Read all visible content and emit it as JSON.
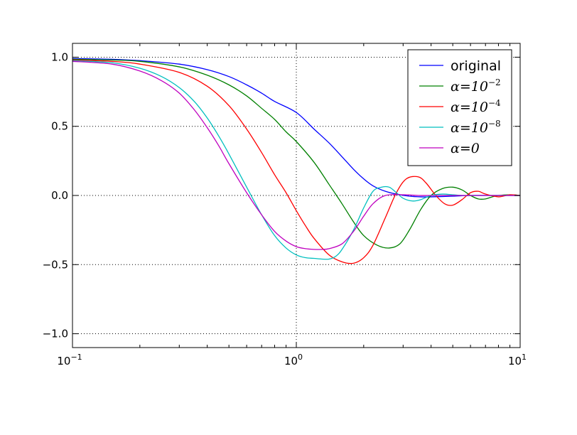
{
  "chart_data": {
    "type": "line",
    "x_scale": "log",
    "xlim": [
      0.1,
      10
    ],
    "ylim": [
      -1.1,
      1.1
    ],
    "x_ticks": [
      {
        "value": 0.1,
        "base": "10",
        "exp": "−1"
      },
      {
        "value": 1,
        "base": "10",
        "exp": "0"
      },
      {
        "value": 10,
        "base": "10",
        "exp": "1"
      }
    ],
    "y_ticks": [
      {
        "value": 1.0,
        "label": "1.0"
      },
      {
        "value": 0.5,
        "label": "0.5"
      },
      {
        "value": 0.0,
        "label": "0.0"
      },
      {
        "value": -0.5,
        "label": "−0.5"
      },
      {
        "value": -1.0,
        "label": "−1.0"
      }
    ],
    "grid": true,
    "legend_position": "top-right",
    "series": [
      {
        "name": "original",
        "color": "#0000ff",
        "x": [
          0.1,
          0.15,
          0.2,
          0.3,
          0.4,
          0.5,
          0.6,
          0.7,
          0.8,
          1.0,
          1.2,
          1.4,
          1.6,
          1.8,
          2.0,
          2.2,
          2.5,
          2.8,
          3.2,
          3.6,
          4,
          5,
          6,
          8,
          10
        ],
        "y": [
          0.99,
          0.985,
          0.975,
          0.95,
          0.91,
          0.86,
          0.8,
          0.74,
          0.68,
          0.6,
          0.48,
          0.38,
          0.28,
          0.19,
          0.12,
          0.07,
          0.03,
          0.01,
          -0.005,
          -0.01,
          -0.01,
          -0.005,
          0.0,
          0.0,
          0.0
        ]
      },
      {
        "name": "α=10⁻²",
        "color": "#008000",
        "x": [
          0.1,
          0.15,
          0.2,
          0.3,
          0.4,
          0.5,
          0.6,
          0.7,
          0.8,
          0.9,
          1.0,
          1.2,
          1.4,
          1.6,
          1.8,
          2.0,
          2.3,
          2.6,
          2.9,
          3.2,
          3.6,
          4.0,
          4.5,
          5.0,
          5.5,
          6.0,
          6.5,
          7.0,
          7.5,
          8.0,
          9.0,
          10
        ],
        "y": [
          0.985,
          0.98,
          0.97,
          0.93,
          0.87,
          0.8,
          0.72,
          0.63,
          0.55,
          0.46,
          0.39,
          0.24,
          0.08,
          -0.06,
          -0.19,
          -0.29,
          -0.36,
          -0.38,
          -0.35,
          -0.25,
          -0.1,
          0.0,
          0.05,
          0.06,
          0.04,
          0.0,
          -0.025,
          -0.025,
          -0.01,
          0.0,
          0.005,
          0.0
        ]
      },
      {
        "name": "α=10⁻⁴",
        "color": "#ff0000",
        "x": [
          0.1,
          0.15,
          0.2,
          0.3,
          0.4,
          0.5,
          0.6,
          0.7,
          0.8,
          0.9,
          1.0,
          1.1,
          1.2,
          1.4,
          1.6,
          1.8,
          2.0,
          2.2,
          2.5,
          2.8,
          3.1,
          3.5,
          3.8,
          4.2,
          4.6,
          5.0,
          5.5,
          6.0,
          6.5,
          7.0,
          8.0,
          9.0,
          10
        ],
        "y": [
          0.98,
          0.97,
          0.95,
          0.89,
          0.79,
          0.65,
          0.48,
          0.31,
          0.15,
          0.02,
          -0.11,
          -0.22,
          -0.31,
          -0.43,
          -0.48,
          -0.49,
          -0.45,
          -0.36,
          -0.16,
          0.02,
          0.12,
          0.135,
          0.09,
          0.0,
          -0.06,
          -0.07,
          -0.03,
          0.02,
          0.03,
          0.01,
          -0.01,
          0.005,
          0.0
        ]
      },
      {
        "name": "α=10⁻⁸",
        "color": "#00bfbf",
        "x": [
          0.1,
          0.15,
          0.2,
          0.25,
          0.3,
          0.35,
          0.4,
          0.45,
          0.5,
          0.6,
          0.7,
          0.8,
          0.9,
          1.0,
          1.1,
          1.2,
          1.3,
          1.4,
          1.5,
          1.6,
          1.8,
          2.0,
          2.2,
          2.4,
          2.6,
          2.8,
          3.0,
          3.3,
          3.6,
          4.0,
          4.5,
          5.0,
          5.5,
          6.0,
          7.0,
          8.0,
          10
        ],
        "y": [
          0.975,
          0.96,
          0.92,
          0.86,
          0.78,
          0.68,
          0.56,
          0.43,
          0.3,
          0.06,
          -0.14,
          -0.29,
          -0.38,
          -0.43,
          -0.45,
          -0.455,
          -0.46,
          -0.46,
          -0.44,
          -0.39,
          -0.25,
          -0.09,
          0.03,
          0.06,
          0.06,
          0.02,
          -0.02,
          -0.04,
          -0.03,
          0.0,
          0.01,
          0.005,
          0.0,
          0.0,
          0.0,
          0.0,
          0.0
        ]
      },
      {
        "name": "α=0",
        "color": "#bf00bf",
        "x": [
          0.1,
          0.15,
          0.2,
          0.25,
          0.3,
          0.35,
          0.4,
          0.45,
          0.5,
          0.6,
          0.7,
          0.8,
          0.9,
          1.0,
          1.1,
          1.2,
          1.3,
          1.4,
          1.6,
          1.8,
          2.0,
          2.2,
          2.5,
          3.0,
          3.5,
          4.0,
          5.0,
          6.0,
          8.0,
          10
        ],
        "y": [
          0.97,
          0.95,
          0.9,
          0.83,
          0.74,
          0.62,
          0.49,
          0.36,
          0.23,
          0.02,
          -0.14,
          -0.26,
          -0.33,
          -0.37,
          -0.385,
          -0.39,
          -0.39,
          -0.385,
          -0.35,
          -0.26,
          -0.15,
          -0.06,
          0.0,
          0.005,
          0.0,
          0.0,
          0.0,
          0.0,
          0.0,
          0.0
        ]
      }
    ]
  }
}
